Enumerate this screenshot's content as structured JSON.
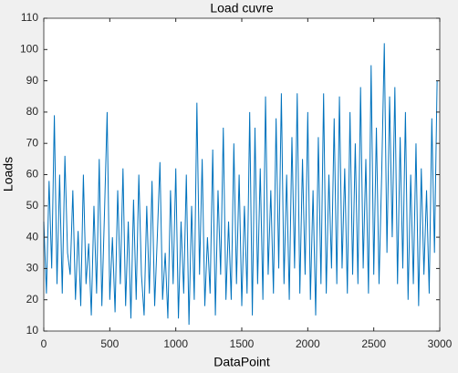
{
  "chart_data": {
    "type": "line",
    "title": "Load cuvre",
    "xlabel": "DataPoint",
    "ylabel": "Loads",
    "x": [
      0,
      20,
      40,
      60,
      80,
      100,
      120,
      140,
      160,
      180,
      200,
      220,
      240,
      260,
      280,
      300,
      320,
      340,
      360,
      380,
      400,
      420,
      440,
      460,
      480,
      500,
      520,
      540,
      560,
      580,
      600,
      620,
      640,
      660,
      680,
      700,
      720,
      740,
      760,
      780,
      800,
      820,
      840,
      860,
      880,
      900,
      920,
      940,
      960,
      980,
      1000,
      1020,
      1040,
      1060,
      1080,
      1100,
      1120,
      1140,
      1160,
      1180,
      1200,
      1220,
      1240,
      1260,
      1280,
      1300,
      1320,
      1340,
      1360,
      1380,
      1400,
      1420,
      1440,
      1460,
      1480,
      1500,
      1520,
      1540,
      1560,
      1580,
      1600,
      1620,
      1640,
      1660,
      1680,
      1700,
      1720,
      1740,
      1760,
      1780,
      1800,
      1820,
      1840,
      1860,
      1880,
      1900,
      1920,
      1940,
      1960,
      1980,
      2000,
      2020,
      2040,
      2060,
      2080,
      2100,
      2120,
      2140,
      2160,
      2180,
      2200,
      2220,
      2240,
      2260,
      2280,
      2300,
      2320,
      2340,
      2360,
      2380,
      2400,
      2420,
      2440,
      2460,
      2480,
      2500,
      2520,
      2540,
      2560,
      2580,
      2600,
      2620,
      2640,
      2660,
      2680,
      2700,
      2720,
      2740,
      2760,
      2780,
      2800,
      2820,
      2840,
      2860,
      2880,
      2900,
      2920,
      2940,
      2960,
      2980
    ],
    "series": [
      {
        "name": "Loads",
        "color": "#0072bd",
        "values": [
          45,
          22,
          58,
          30,
          79,
          25,
          60,
          22,
          66,
          35,
          28,
          55,
          20,
          42,
          18,
          60,
          25,
          38,
          15,
          50,
          22,
          65,
          18,
          48,
          80,
          20,
          40,
          16,
          55,
          25,
          62,
          18,
          45,
          14,
          52,
          20,
          60,
          28,
          15,
          50,
          22,
          58,
          18,
          40,
          64,
          20,
          35,
          14,
          55,
          25,
          62,
          14,
          45,
          22,
          60,
          12,
          50,
          20,
          83,
          28,
          65,
          18,
          40,
          22,
          68,
          15,
          55,
          28,
          75,
          20,
          45,
          20,
          70,
          25,
          60,
          18,
          50,
          22,
          80,
          15,
          75,
          25,
          62,
          20,
          85,
          28,
          55,
          22,
          78,
          30,
          86,
          25,
          60,
          20,
          72,
          30,
          86,
          22,
          65,
          28,
          80,
          20,
          55,
          15,
          72,
          25,
          86,
          22,
          60,
          30,
          78,
          25,
          85,
          30,
          62,
          22,
          80,
          28,
          70,
          25,
          88,
          30,
          65,
          22,
          95,
          28,
          75,
          25,
          60,
          102,
          35,
          85,
          40,
          88,
          25,
          72,
          30,
          80,
          20,
          60,
          25,
          70,
          18,
          62,
          28,
          55,
          22,
          78,
          35,
          90
        ]
      }
    ],
    "xlim": [
      0,
      3000
    ],
    "xticks": [
      0,
      500,
      1000,
      1500,
      2000,
      2500,
      3000
    ],
    "ylim": [
      10,
      110
    ],
    "yticks": [
      10,
      20,
      30,
      40,
      50,
      60,
      70,
      80,
      90,
      100,
      110
    ]
  }
}
